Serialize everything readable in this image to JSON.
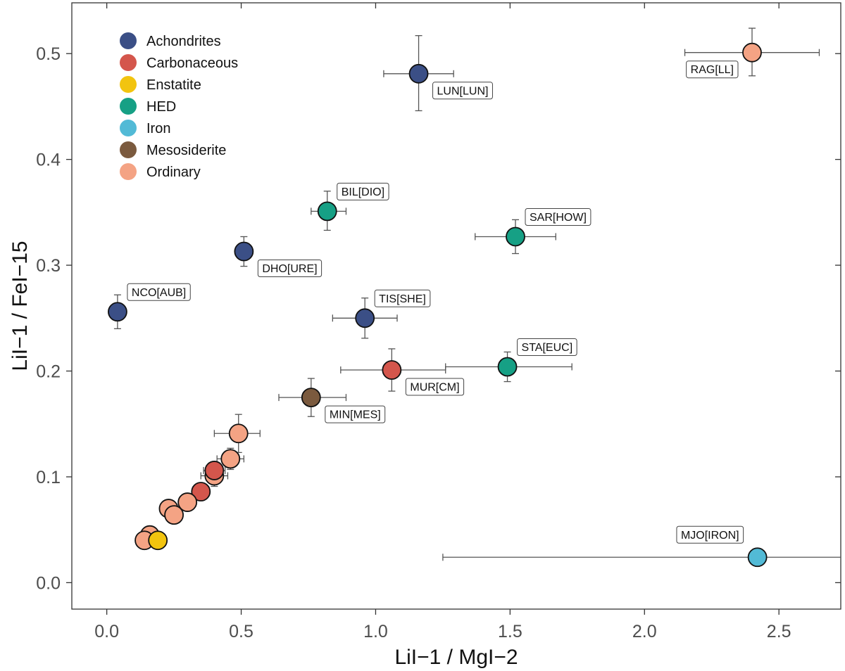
{
  "chart_data": {
    "type": "scatter",
    "title": "",
    "xlabel": "LiI−1 / MgI−2",
    "ylabel": "LiI−1 / FeI−15",
    "xlim": [
      -0.13,
      2.73
    ],
    "ylim": [
      -0.025,
      0.548
    ],
    "xticks": [
      0.0,
      0.5,
      1.0,
      1.5,
      2.0,
      2.5
    ],
    "xtick_labels": [
      "0.0",
      "0.5",
      "1.0",
      "1.5",
      "2.0",
      "2.5"
    ],
    "yticks": [
      0.0,
      0.1,
      0.2,
      0.3,
      0.4,
      0.5
    ],
    "ytick_labels": [
      "0.0",
      "0.1",
      "0.2",
      "0.3",
      "0.4",
      "0.5"
    ],
    "grid": false,
    "legend_position": "top-left",
    "categories": [
      {
        "name": "Achondrites",
        "color": "#3b4f86"
      },
      {
        "name": "Carbonaceous",
        "color": "#d4564c"
      },
      {
        "name": "Enstatite",
        "color": "#f2c40f"
      },
      {
        "name": "HED",
        "color": "#16a085"
      },
      {
        "name": "Iron",
        "color": "#52bad6"
      },
      {
        "name": "Mesosiderite",
        "color": "#7b5a3e"
      },
      {
        "name": "Ordinary",
        "color": "#f4a384"
      }
    ],
    "points": [
      {
        "label": "LUN[LUN]",
        "group": "Achondrites",
        "x": 1.16,
        "y": 0.481,
        "xerr": [
          1.03,
          1.29
        ],
        "yerr": [
          0.446,
          0.517
        ],
        "label_side": "right-below"
      },
      {
        "label": "RAG[LL]",
        "group": "Ordinary",
        "x": 2.4,
        "y": 0.501,
        "xerr": [
          2.15,
          2.65
        ],
        "yerr": [
          0.479,
          0.524
        ],
        "label_side": "left-below"
      },
      {
        "label": "BIL[DIO]",
        "group": "HED",
        "x": 0.82,
        "y": 0.351,
        "xerr": [
          0.76,
          0.89
        ],
        "yerr": [
          0.333,
          0.37
        ],
        "label_side": "right-above"
      },
      {
        "label": "SAR[HOW]",
        "group": "HED",
        "x": 1.52,
        "y": 0.327,
        "xerr": [
          1.37,
          1.67
        ],
        "yerr": [
          0.311,
          0.343
        ],
        "label_side": "right-above"
      },
      {
        "label": "DHO[URE]",
        "group": "Achondrites",
        "x": 0.51,
        "y": 0.313,
        "xerr": null,
        "yerr": [
          0.299,
          0.327
        ],
        "label_side": "right-below"
      },
      {
        "label": "NCO[AUB]",
        "group": "Achondrites",
        "x": 0.04,
        "y": 0.256,
        "xerr": null,
        "yerr": [
          0.24,
          0.272
        ],
        "label_side": "right-above"
      },
      {
        "label": "TIS[SHE]",
        "group": "Achondrites",
        "x": 0.96,
        "y": 0.25,
        "xerr": [
          0.84,
          1.08
        ],
        "yerr": [
          0.231,
          0.269
        ],
        "label_side": "right-above"
      },
      {
        "label": "STA[EUC]",
        "group": "HED",
        "x": 1.49,
        "y": 0.204,
        "xerr": [
          1.26,
          1.73
        ],
        "yerr": [
          0.19,
          0.218
        ],
        "label_side": "right-above"
      },
      {
        "label": "MUR[CM]",
        "group": "Carbonaceous",
        "x": 1.06,
        "y": 0.201,
        "xerr": [
          0.87,
          1.26
        ],
        "yerr": [
          0.181,
          0.221
        ],
        "label_side": "right-below"
      },
      {
        "label": "MIN[MES]",
        "group": "Mesosiderite",
        "x": 0.76,
        "y": 0.175,
        "xerr": [
          0.64,
          0.89
        ],
        "yerr": [
          0.157,
          0.193
        ],
        "label_side": "right-below"
      },
      {
        "label": "MJO[IRON]",
        "group": "Iron",
        "x": 2.42,
        "y": 0.024,
        "xerr": [
          1.25,
          2.73
        ],
        "yerr": null,
        "label_side": "left-above"
      },
      {
        "label": "",
        "group": "Ordinary",
        "x": 0.49,
        "y": 0.141,
        "xerr": [
          0.4,
          0.57
        ],
        "yerr": [
          0.123,
          0.159
        ]
      },
      {
        "label": "",
        "group": "Ordinary",
        "x": 0.46,
        "y": 0.117,
        "xerr": [
          0.41,
          0.51
        ],
        "yerr": [
          0.107,
          0.127
        ]
      },
      {
        "label": "",
        "group": "Ordinary",
        "x": 0.4,
        "y": 0.101,
        "xerr": [
          0.35,
          0.45
        ],
        "yerr": [
          0.091,
          0.111
        ]
      },
      {
        "label": "",
        "group": "Carbonaceous",
        "x": 0.4,
        "y": 0.106,
        "xerr": [
          0.36,
          0.44
        ],
        "yerr": [
          0.098,
          0.114
        ]
      },
      {
        "label": "",
        "group": "Carbonaceous",
        "x": 0.35,
        "y": 0.086,
        "xerr": null,
        "yerr": null
      },
      {
        "label": "",
        "group": "Ordinary",
        "x": 0.3,
        "y": 0.076,
        "xerr": null,
        "yerr": null
      },
      {
        "label": "",
        "group": "Ordinary",
        "x": 0.23,
        "y": 0.07,
        "xerr": null,
        "yerr": null
      },
      {
        "label": "",
        "group": "Ordinary",
        "x": 0.25,
        "y": 0.064,
        "xerr": null,
        "yerr": null
      },
      {
        "label": "",
        "group": "Ordinary",
        "x": 0.16,
        "y": 0.045,
        "xerr": null,
        "yerr": null
      },
      {
        "label": "",
        "group": "Ordinary",
        "x": 0.14,
        "y": 0.04,
        "xerr": null,
        "yerr": null
      },
      {
        "label": "",
        "group": "Enstatite",
        "x": 0.19,
        "y": 0.04,
        "xerr": null,
        "yerr": null
      }
    ]
  }
}
